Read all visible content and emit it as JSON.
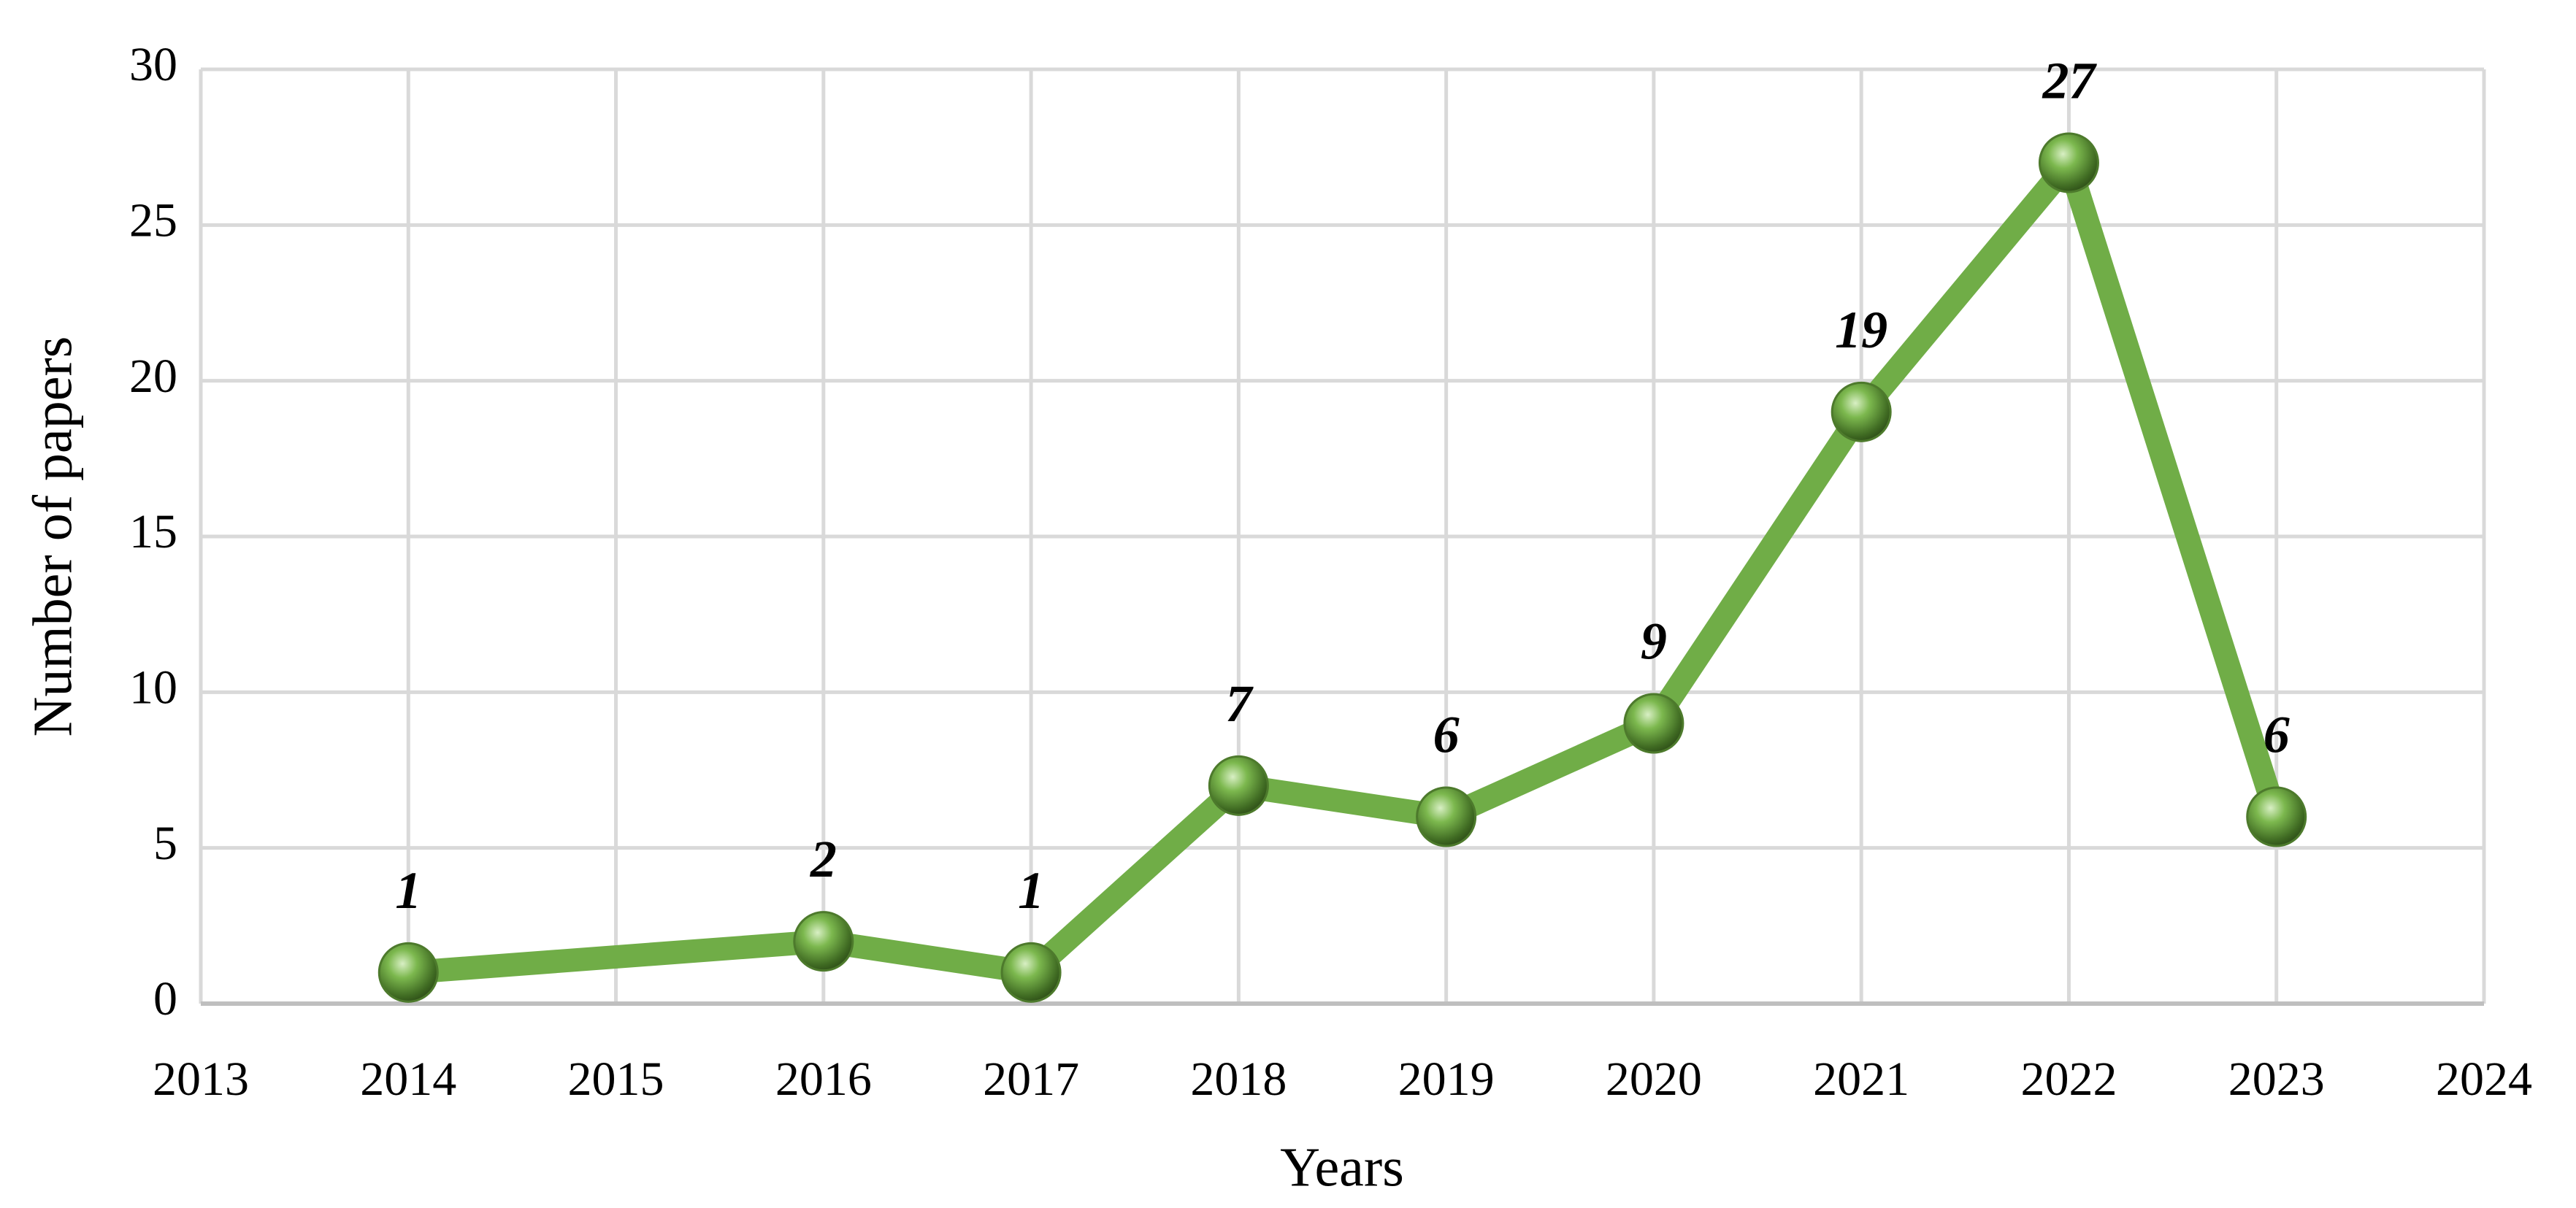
{
  "chart_data": {
    "type": "line",
    "xlabel": "Years",
    "ylabel": "Number of papers",
    "x": [
      2014,
      2016,
      2017,
      2018,
      2019,
      2020,
      2021,
      2022,
      2023
    ],
    "values": [
      1,
      2,
      1,
      7,
      6,
      9,
      19,
      27,
      6
    ],
    "color": "#70ad47",
    "xlim": [
      2013,
      2024
    ],
    "xticks": [
      2013,
      2014,
      2015,
      2016,
      2017,
      2018,
      2019,
      2020,
      2021,
      2022,
      2023,
      2024
    ],
    "ylim": [
      0,
      30
    ],
    "yticks": [
      0,
      5,
      10,
      15,
      20,
      25,
      30
    ],
    "grid": true,
    "data_labels": true
  }
}
